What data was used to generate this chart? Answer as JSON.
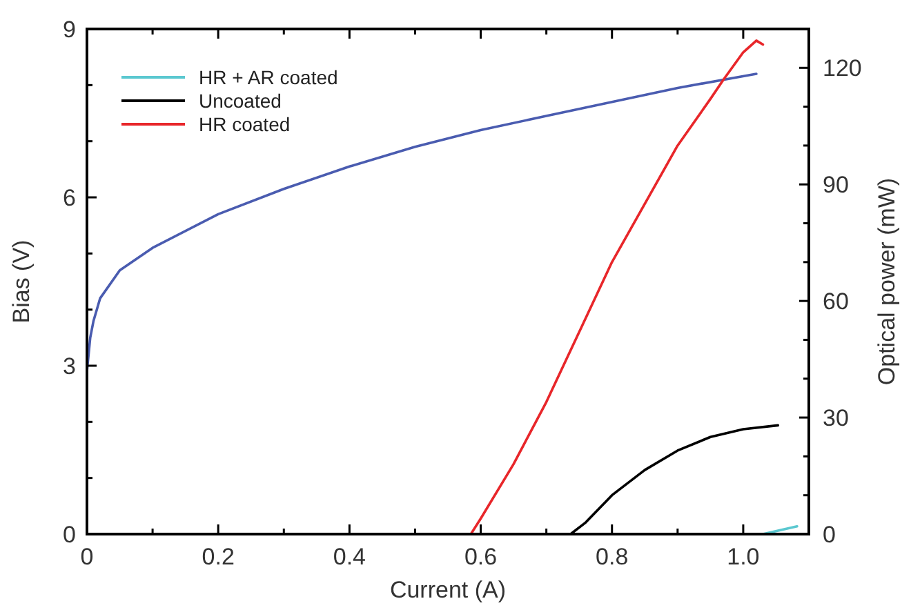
{
  "chart_data": {
    "type": "line",
    "xlabel": "Current (A)",
    "ylabel": "Bias (V)",
    "y2label": "Optical power (mW)",
    "xlim": [
      0,
      1.1
    ],
    "xticks": [
      0,
      {
        "value": 0.1,
        "label": null
      },
      0.2,
      {
        "value": 0.3,
        "label": null
      },
      0.4,
      {
        "value": 0.5,
        "label": null
      },
      0.6,
      {
        "value": 0.7,
        "label": null
      },
      0.8,
      {
        "value": 0.9,
        "label": null
      },
      {
        "value": 1.0,
        "label": "1.0"
      }
    ],
    "ylim": [
      0,
      9
    ],
    "yticks": [
      0,
      {
        "value": 1,
        "label": null
      },
      {
        "value": 2,
        "label": null
      },
      3,
      {
        "value": 4,
        "label": null
      },
      {
        "value": 5,
        "label": null
      },
      6,
      {
        "value": 7,
        "label": null
      },
      {
        "value": 8,
        "label": null
      },
      9
    ],
    "y2lim": [
      0,
      130
    ],
    "y2ticks": [
      0,
      {
        "value": 10,
        "label": null
      },
      {
        "value": 20,
        "label": null
      },
      30,
      {
        "value": 40,
        "label": null
      },
      {
        "value": 50,
        "label": null
      },
      60,
      {
        "value": 70,
        "label": null
      },
      {
        "value": 80,
        "label": null
      },
      90,
      {
        "value": 100,
        "label": null
      },
      {
        "value": 110,
        "label": null
      },
      120
    ],
    "legend": "top left",
    "grid": false,
    "marker": "none",
    "line_style": "solid",
    "series": [
      {
        "color": "#4a5cb0",
        "x": [
          0,
          0.005,
          0.01,
          0.02,
          0.05,
          0.1,
          0.2,
          0.3,
          0.4,
          0.5,
          0.6,
          0.7,
          0.8,
          0.9,
          1.02
        ],
        "values": [
          2.9,
          3.5,
          3.8,
          4.2,
          4.7,
          5.1,
          5.7,
          6.15,
          6.55,
          6.9,
          7.2,
          7.45,
          7.7,
          7.95,
          8.2
        ]
      },
      {
        "name": "HR + AR coated",
        "color": "#5bc8d0",
        "axis": "y2",
        "x": [
          1.03,
          1.082
        ],
        "values": [
          0,
          2
        ]
      },
      {
        "name": "Uncoated",
        "color": "#000000",
        "axis": "y2",
        "x": [
          0.737,
          0.76,
          0.8,
          0.85,
          0.9,
          0.95,
          1.0,
          1.053
        ],
        "values": [
          0,
          3,
          10,
          16.5,
          21.5,
          25,
          27,
          28
        ]
      },
      {
        "name": "HR coated",
        "color": "#e8262a",
        "axis": "y2",
        "x": [
          0.585,
          0.6,
          0.65,
          0.7,
          0.75,
          0.8,
          0.85,
          0.9,
          0.95,
          0.97,
          1.0,
          1.02,
          1.03
        ],
        "values": [
          0,
          4,
          18,
          34,
          52,
          70,
          85,
          100,
          112,
          117,
          124,
          127,
          126
        ]
      }
    ]
  }
}
